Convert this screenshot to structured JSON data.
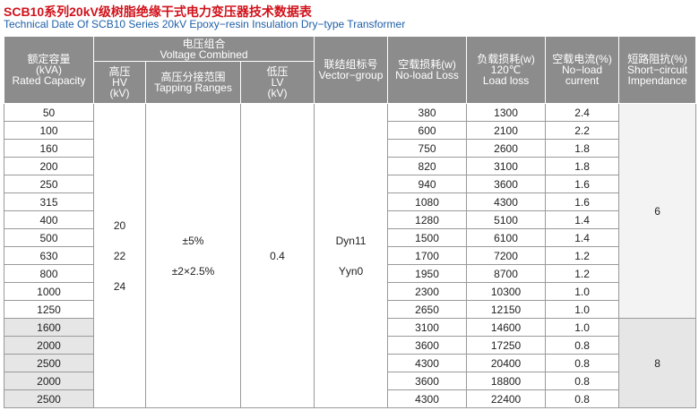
{
  "header": {
    "title": "SCB10系列20kV级树脂绝缘干式电力变压器技术数据表",
    "subtitle": "Technical Date Of  SCB10 Series 20kV Epoxy−resin Insulation Dry−type Transformer"
  },
  "table": {
    "columns": {
      "capacity": [
        "额定容量",
        "(kVA)",
        "Rated Capacity"
      ],
      "voltage": [
        "电压组合",
        "Voltage Combined"
      ],
      "hv": [
        "高压",
        "HV",
        "(kV)"
      ],
      "tapping": [
        "高压分接范围",
        "Tapping Ranges"
      ],
      "lv": [
        "低压",
        "LV",
        "(kV)"
      ],
      "vector": [
        "联结组标号",
        "Vector−group"
      ],
      "no_load_loss": [
        "空载损耗(w)",
        "No-load Loss"
      ],
      "load_loss": [
        "负载损耗(w)",
        "120℃",
        "Load loss"
      ],
      "no_load_current": [
        "空载电流(%)",
        "No−load",
        "current"
      ],
      "impedance": [
        "短路阻抗(%)",
        "Short−circuit",
        "Impendance"
      ]
    },
    "hv": [
      "20",
      "22",
      "24"
    ],
    "tapping": [
      "±5%",
      "±2×2.5%"
    ],
    "lv": "0.4",
    "vector": [
      "Dyn11",
      "Yyn0"
    ],
    "impedance": [
      "6",
      "8"
    ],
    "rows": [
      [
        "50",
        "380",
        "1300",
        "2.4"
      ],
      [
        "100",
        "600",
        "2100",
        "2.2"
      ],
      [
        "160",
        "750",
        "2600",
        "1.8"
      ],
      [
        "200",
        "820",
        "3100",
        "1.8"
      ],
      [
        "250",
        "940",
        "3600",
        "1.6"
      ],
      [
        "315",
        "1080",
        "4300",
        "1.6"
      ],
      [
        "400",
        "1280",
        "5100",
        "1.4"
      ],
      [
        "500",
        "1500",
        "6100",
        "1.4"
      ],
      [
        "630",
        "1700",
        "7200",
        "1.2"
      ],
      [
        "800",
        "1950",
        "8700",
        "1.2"
      ],
      [
        "1000",
        "2300",
        "10300",
        "1.0"
      ],
      [
        "1250",
        "2650",
        "12150",
        "1.0"
      ],
      [
        "1600",
        "3100",
        "14600",
        "1.0"
      ],
      [
        "2000",
        "3600",
        "17250",
        "0.8"
      ],
      [
        "2500",
        "4300",
        "20400",
        "0.8"
      ],
      [
        "2000",
        "3600",
        "18800",
        "0.8"
      ],
      [
        "2500",
        "4300",
        "22400",
        "0.8"
      ]
    ]
  }
}
